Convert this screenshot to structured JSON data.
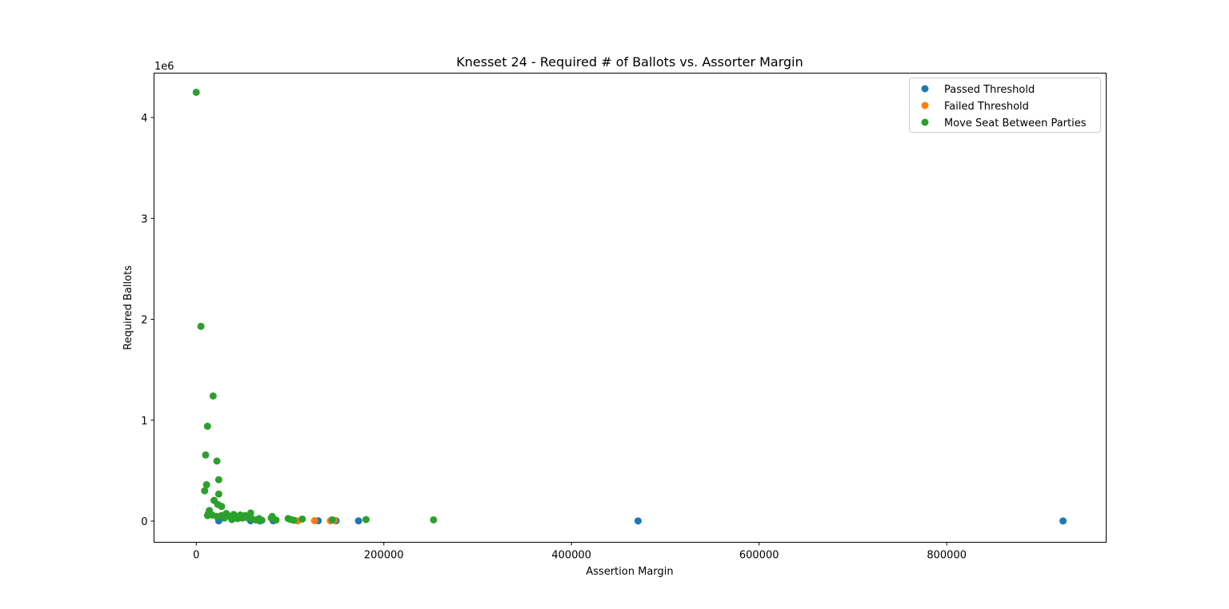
{
  "chart_data": {
    "type": "scatter",
    "title": "Knesset 24 - Required # of Ballots vs. Assorter Margin",
    "xlabel": "Assertion Margin",
    "ylabel": "Required Ballots",
    "y_offset_label": "1e6",
    "y_multiplier": 1000000,
    "xlim": [
      -45000,
      970000
    ],
    "ylim": [
      -210000,
      4440000
    ],
    "x_ticks": [
      0,
      200000,
      400000,
      600000,
      800000
    ],
    "x_tick_labels": [
      "0",
      "200000",
      "400000",
      "600000",
      "800000"
    ],
    "y_ticks": [
      0,
      1000000,
      2000000,
      3000000,
      4000000
    ],
    "y_tick_labels": [
      "0",
      "1",
      "2",
      "3",
      "4"
    ],
    "legend_position": "upper-right",
    "grid": false,
    "series": [
      {
        "name": "Passed Threshold",
        "color": "#1f77b4",
        "points": [
          [
            24000,
            2000
          ],
          [
            58000,
            3000
          ],
          [
            68000,
            2000
          ],
          [
            82000,
            3000
          ],
          [
            130000,
            3000
          ],
          [
            149000,
            3000
          ],
          [
            173000,
            2000
          ],
          [
            471000,
            1000
          ],
          [
            924000,
            1000
          ]
        ]
      },
      {
        "name": "Failed Threshold",
        "color": "#ff7f0e",
        "points": [
          [
            108000,
            2000
          ],
          [
            126000,
            4000
          ],
          [
            143000,
            3000
          ],
          [
            147000,
            7000
          ]
        ]
      },
      {
        "name": "Move Seat Between Parties",
        "color": "#2ca02c",
        "points": [
          [
            0,
            4250000
          ],
          [
            5000,
            1930000
          ],
          [
            18000,
            1240000
          ],
          [
            12000,
            940000
          ],
          [
            10000,
            655000
          ],
          [
            22000,
            595000
          ],
          [
            24000,
            410000
          ],
          [
            11000,
            360000
          ],
          [
            9000,
            300000
          ],
          [
            24000,
            268000
          ],
          [
            19000,
            205000
          ],
          [
            23000,
            165000
          ],
          [
            27000,
            145000
          ],
          [
            14000,
            105000
          ],
          [
            13000,
            75000
          ],
          [
            12000,
            55000
          ],
          [
            17000,
            60000
          ],
          [
            22000,
            45000
          ],
          [
            27000,
            55000
          ],
          [
            32000,
            75000
          ],
          [
            35000,
            50000
          ],
          [
            30000,
            30000
          ],
          [
            38000,
            15000
          ],
          [
            40000,
            65000
          ],
          [
            42000,
            40000
          ],
          [
            44000,
            25000
          ],
          [
            47000,
            60000
          ],
          [
            49000,
            30000
          ],
          [
            52000,
            55000
          ],
          [
            54000,
            35000
          ],
          [
            58000,
            80000
          ],
          [
            60000,
            20000
          ],
          [
            64000,
            10000
          ],
          [
            67000,
            25000
          ],
          [
            70000,
            8000
          ],
          [
            80000,
            30000
          ],
          [
            81000,
            45000
          ],
          [
            85000,
            10000
          ],
          [
            98000,
            25000
          ],
          [
            101000,
            15000
          ],
          [
            104000,
            8000
          ],
          [
            113000,
            20000
          ],
          [
            145000,
            12000
          ],
          [
            181000,
            15000
          ],
          [
            253000,
            12000
          ]
        ]
      }
    ]
  }
}
